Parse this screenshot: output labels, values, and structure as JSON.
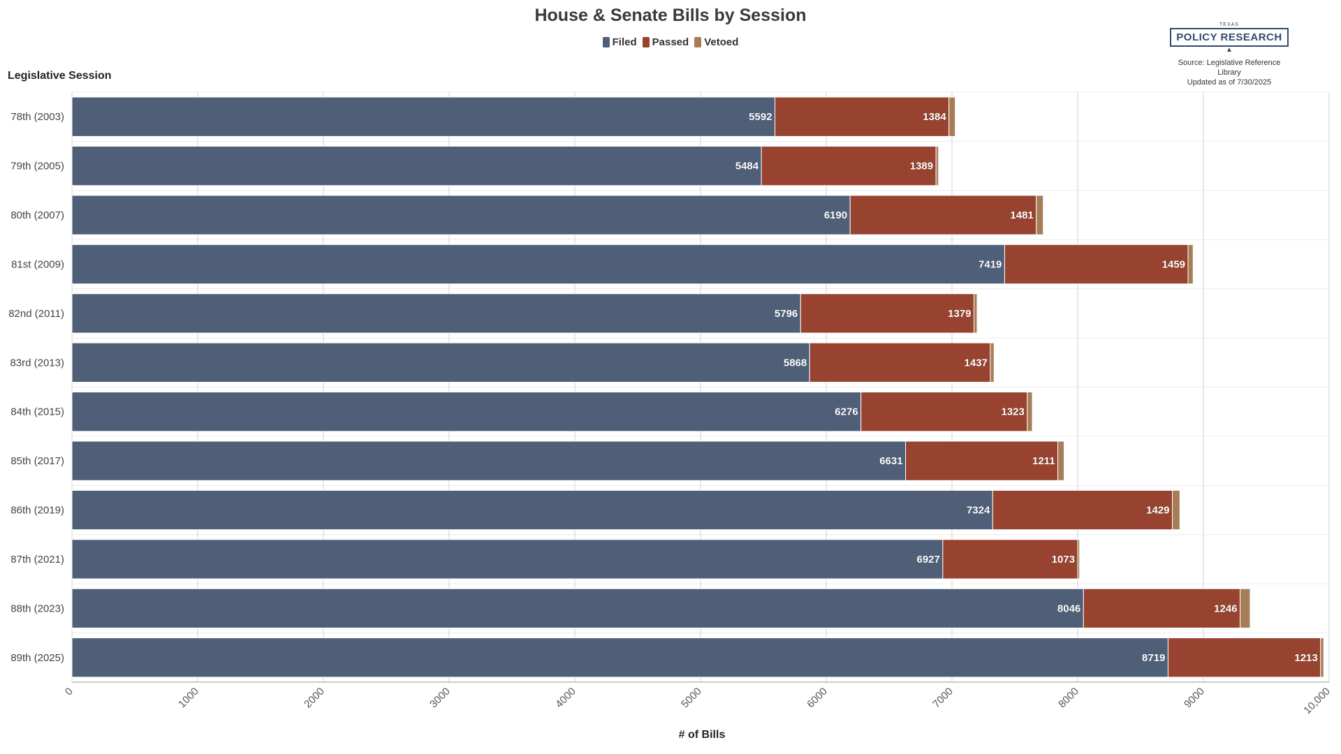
{
  "chart_data": {
    "type": "bar",
    "orientation": "horizontal",
    "stacked": true,
    "title": "House & Senate Bills by Session",
    "ylabel": "Legislative Session",
    "xlabel": "# of Bills",
    "xlim": [
      0,
      10000
    ],
    "xticks": [
      "0",
      "1000",
      "2000",
      "3000",
      "4000",
      "5000",
      "6000",
      "7000",
      "8000",
      "9000",
      "10,000"
    ],
    "categories": [
      "78th (2003)",
      "79th (2005)",
      "80th (2007)",
      "81st (2009)",
      "82nd (2011)",
      "83rd (2013)",
      "84th (2015)",
      "85th (2017)",
      "86th (2019)",
      "87th (2021)",
      "88th (2023)",
      "89th (2025)"
    ],
    "series": [
      {
        "name": "Filed",
        "color": "#4f5f78",
        "values": [
          5592,
          5484,
          6190,
          7419,
          5796,
          5868,
          6276,
          6631,
          7324,
          6927,
          8046,
          8719
        ]
      },
      {
        "name": "Passed",
        "color": "#97432f",
        "values": [
          1384,
          1389,
          1481,
          1459,
          1379,
          1437,
          1323,
          1211,
          1429,
          1073,
          1246,
          1213
        ]
      },
      {
        "name": "Vetoed",
        "color": "#a67d57",
        "values": [
          50,
          20,
          55,
          40,
          25,
          30,
          40,
          50,
          60,
          15,
          80,
          25
        ]
      }
    ],
    "legend_position": "top-center",
    "grid": true
  },
  "branding": {
    "logo_top": "TEXAS",
    "logo_name": "POLICY RESEARCH",
    "source_line1": "Source: Legislative Reference Library",
    "source_line2": "Updated as of 7/30/2025"
  }
}
